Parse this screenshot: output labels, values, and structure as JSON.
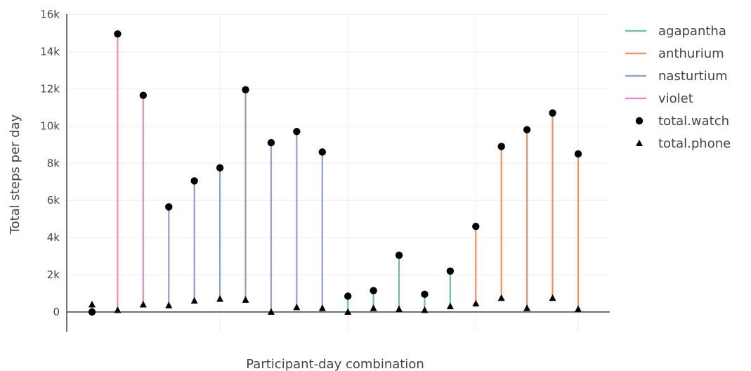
{
  "chart_data": {
    "type": "lollipop",
    "xlabel": "Participant-day combination",
    "ylabel": "Total steps per day",
    "ylim": [
      -1100,
      16000
    ],
    "yticks": [
      0,
      2000,
      4000,
      6000,
      8000,
      10000,
      12000,
      14000,
      16000
    ],
    "ytick_labels": [
      "0",
      "2k",
      "4k",
      "6k",
      "8k",
      "10k",
      "12k",
      "14k",
      "16k"
    ],
    "grid": true,
    "legend_position": "top-right",
    "groups": [
      {
        "name": "agapantha",
        "color": "#66c2a5"
      },
      {
        "name": "anthurium",
        "color": "#fc8d62"
      },
      {
        "name": "nasturtium",
        "color": "#8da0cb"
      },
      {
        "name": "violet",
        "color": "#e78ac3"
      }
    ],
    "markers": [
      {
        "name": "total.watch",
        "symbol": "circle"
      },
      {
        "name": "total.phone",
        "symbol": "triangle"
      }
    ],
    "points": [
      {
        "group": "violet",
        "watch": 0,
        "phone": 400
      },
      {
        "group": "violet",
        "watch": 14950,
        "phone": 100
      },
      {
        "group": "violet",
        "watch": 11650,
        "phone": 400
      },
      {
        "group": "nasturtium",
        "watch": 5650,
        "phone": 350
      },
      {
        "group": "nasturtium",
        "watch": 7050,
        "phone": 600
      },
      {
        "group": "nasturtium",
        "watch": 7750,
        "phone": 700
      },
      {
        "group": "nasturtium",
        "watch": 11950,
        "phone": 650
      },
      {
        "group": "nasturtium",
        "watch": 9100,
        "phone": 0
      },
      {
        "group": "nasturtium",
        "watch": 9700,
        "phone": 250
      },
      {
        "group": "nasturtium",
        "watch": 8600,
        "phone": 200
      },
      {
        "group": "agapantha",
        "watch": 850,
        "phone": 0
      },
      {
        "group": "agapantha",
        "watch": 1150,
        "phone": 200
      },
      {
        "group": "agapantha",
        "watch": 3050,
        "phone": 150
      },
      {
        "group": "agapantha",
        "watch": 950,
        "phone": 100
      },
      {
        "group": "agapantha",
        "watch": 2200,
        "phone": 300
      },
      {
        "group": "anthurium",
        "watch": 4600,
        "phone": 450
      },
      {
        "group": "anthurium",
        "watch": 8900,
        "phone": 750
      },
      {
        "group": "anthurium",
        "watch": 9800,
        "phone": 200
      },
      {
        "group": "anthurium",
        "watch": 10700,
        "phone": 750
      },
      {
        "group": "anthurium",
        "watch": 8500,
        "phone": 150
      }
    ]
  }
}
